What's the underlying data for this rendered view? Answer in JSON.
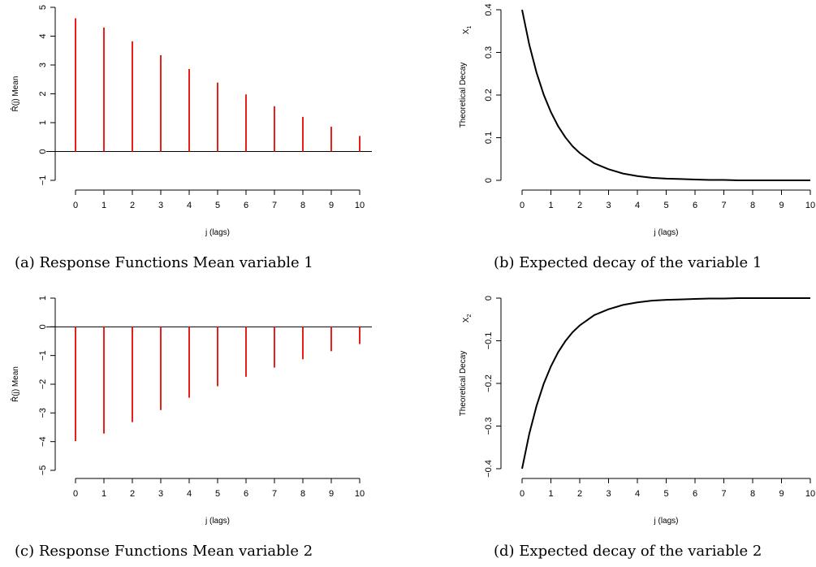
{
  "chart_data": [
    {
      "type": "bar",
      "style": "spike",
      "xlabel": "j (lags)",
      "ylabel": "R̂(j)  Mean",
      "caption": "(a) Response Functions Mean variable 1",
      "x": [
        0,
        1,
        2,
        3,
        4,
        5,
        6,
        7,
        8,
        9,
        10
      ],
      "values": [
        4.62,
        4.3,
        3.82,
        3.34,
        2.86,
        2.39,
        1.98,
        1.57,
        1.2,
        0.86,
        0.54
      ],
      "ylim": [
        -1,
        5
      ],
      "xlim": [
        0,
        10
      ],
      "xticks": [
        "0",
        "1",
        "2",
        "3",
        "4",
        "5",
        "6",
        "7",
        "8",
        "9",
        "10"
      ],
      "yticks": [
        "−1",
        "0",
        "1",
        "2",
        "3",
        "4",
        "5"
      ],
      "color": "#e8201c",
      "zero_line": true
    },
    {
      "type": "line",
      "xlabel": "j (lags)",
      "ylabel": "Theoretical Decay",
      "ylabel_var": "X",
      "ylabel_sub": "1",
      "caption": "(b) Expected decay of the variable 1",
      "x": [
        0,
        0.25,
        0.5,
        0.75,
        1,
        1.25,
        1.5,
        1.75,
        2,
        2.5,
        3,
        3.5,
        4,
        4.5,
        5,
        5.5,
        6,
        6.5,
        7,
        7.5,
        8,
        8.5,
        9,
        9.5,
        10
      ],
      "values": [
        0.4,
        0.318,
        0.253,
        0.201,
        0.16,
        0.127,
        0.101,
        0.08,
        0.064,
        0.04,
        0.026,
        0.016,
        0.01,
        0.006,
        0.004,
        0.003,
        0.002,
        0.001,
        0.001,
        0.0,
        0.0,
        0.0,
        0.0,
        0.0,
        0.0
      ],
      "ylim": [
        0,
        0.4
      ],
      "xlim": [
        0,
        10
      ],
      "xticks": [
        "0",
        "1",
        "2",
        "3",
        "4",
        "5",
        "6",
        "7",
        "8",
        "9",
        "10"
      ],
      "yticks": [
        "0",
        "0.1",
        "0.2",
        "0.3",
        "0.4"
      ],
      "color": "#000000"
    },
    {
      "type": "bar",
      "style": "spike",
      "xlabel": "j (lags)",
      "ylabel": "R̂(j)  Mean",
      "caption": "(c) Response Functions Mean variable 2",
      "x": [
        0,
        1,
        2,
        3,
        4,
        5,
        6,
        7,
        8,
        9,
        10
      ],
      "values": [
        -3.98,
        -3.72,
        -3.32,
        -2.9,
        -2.47,
        -2.07,
        -1.74,
        -1.42,
        -1.13,
        -0.85,
        -0.6
      ],
      "ylim": [
        -5,
        1
      ],
      "xlim": [
        0,
        10
      ],
      "xticks": [
        "0",
        "1",
        "2",
        "3",
        "4",
        "5",
        "6",
        "7",
        "8",
        "9",
        "10"
      ],
      "yticks": [
        "−5",
        "−4",
        "−3",
        "−2",
        "−1",
        "0",
        "1"
      ],
      "color": "#e8201c",
      "zero_line": true
    },
    {
      "type": "line",
      "xlabel": "j (lags)",
      "ylabel": "Theoretical Decay",
      "ylabel_var": "X",
      "ylabel_sub": "2",
      "caption": "(d) Expected decay of the variable 2",
      "x": [
        0,
        0.25,
        0.5,
        0.75,
        1,
        1.25,
        1.5,
        1.75,
        2,
        2.5,
        3,
        3.5,
        4,
        4.5,
        5,
        5.5,
        6,
        6.5,
        7,
        7.5,
        8,
        8.5,
        9,
        9.5,
        10
      ],
      "values": [
        -0.4,
        -0.318,
        -0.253,
        -0.201,
        -0.16,
        -0.127,
        -0.101,
        -0.08,
        -0.064,
        -0.04,
        -0.026,
        -0.016,
        -0.01,
        -0.006,
        -0.004,
        -0.003,
        -0.002,
        -0.001,
        -0.001,
        0.0,
        0.0,
        0.0,
        0.0,
        0.0,
        0.0
      ],
      "ylim": [
        -0.4,
        0
      ],
      "xlim": [
        0,
        10
      ],
      "xticks": [
        "0",
        "1",
        "2",
        "3",
        "4",
        "5",
        "6",
        "7",
        "8",
        "9",
        "10"
      ],
      "yticks": [
        "−0.4",
        "−0.3",
        "−0.2",
        "−0.1",
        "0"
      ],
      "color": "#000000"
    }
  ]
}
